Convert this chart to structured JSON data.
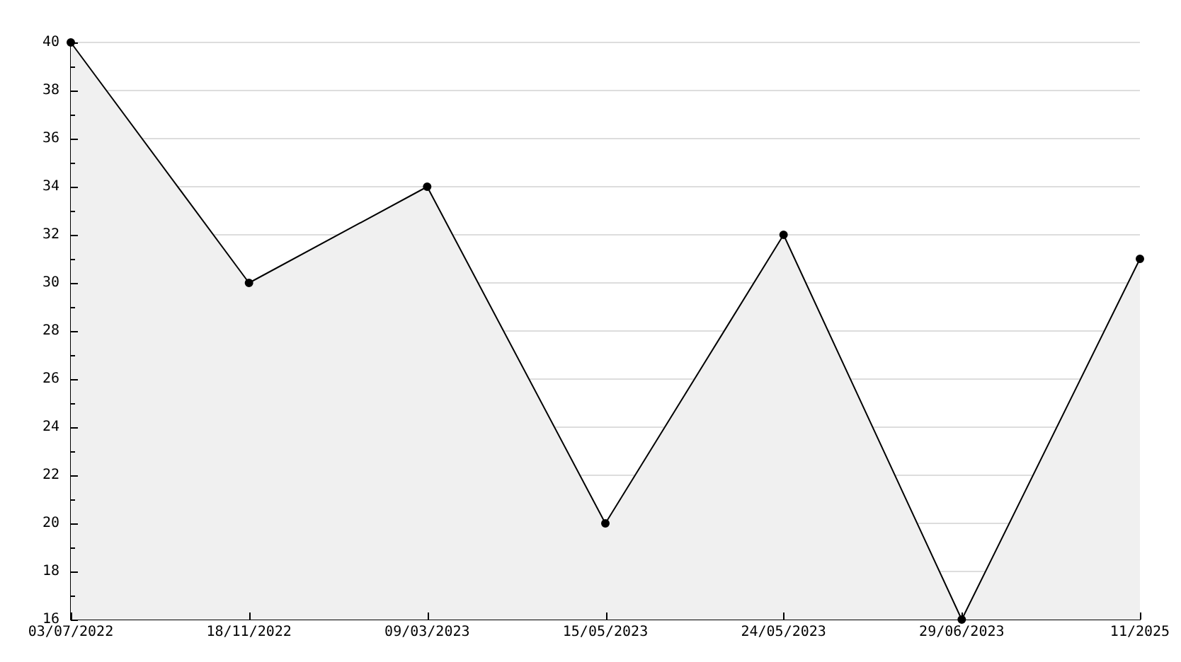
{
  "chart_data": {
    "type": "area",
    "categories": [
      "03/07/2022",
      "18/11/2022",
      "09/03/2023",
      "15/05/2023",
      "24/05/2023",
      "29/06/2023",
      "11/2025"
    ],
    "values": [
      40,
      30,
      34,
      20,
      32,
      16,
      31
    ],
    "color": "#f0f0f0",
    "ylim": [
      16,
      40
    ],
    "yticks": [
      16,
      {
        "value": 17,
        "label": null
      },
      18,
      {
        "value": 19,
        "label": null
      },
      20,
      {
        "value": 21,
        "label": null
      },
      22,
      {
        "value": 23,
        "label": null
      },
      24,
      {
        "value": 25,
        "label": null
      },
      26,
      {
        "value": 27,
        "label": null
      },
      28,
      {
        "value": 29,
        "label": null
      },
      30,
      {
        "value": 31,
        "label": null
      },
      32,
      {
        "value": 33,
        "label": null
      },
      34,
      {
        "value": 35,
        "label": null
      },
      36,
      {
        "value": 37,
        "label": null
      },
      38,
      {
        "value": 39,
        "label": null
      },
      40
    ],
    "grid": "y",
    "marker": "circle",
    "line_style": "solid"
  }
}
